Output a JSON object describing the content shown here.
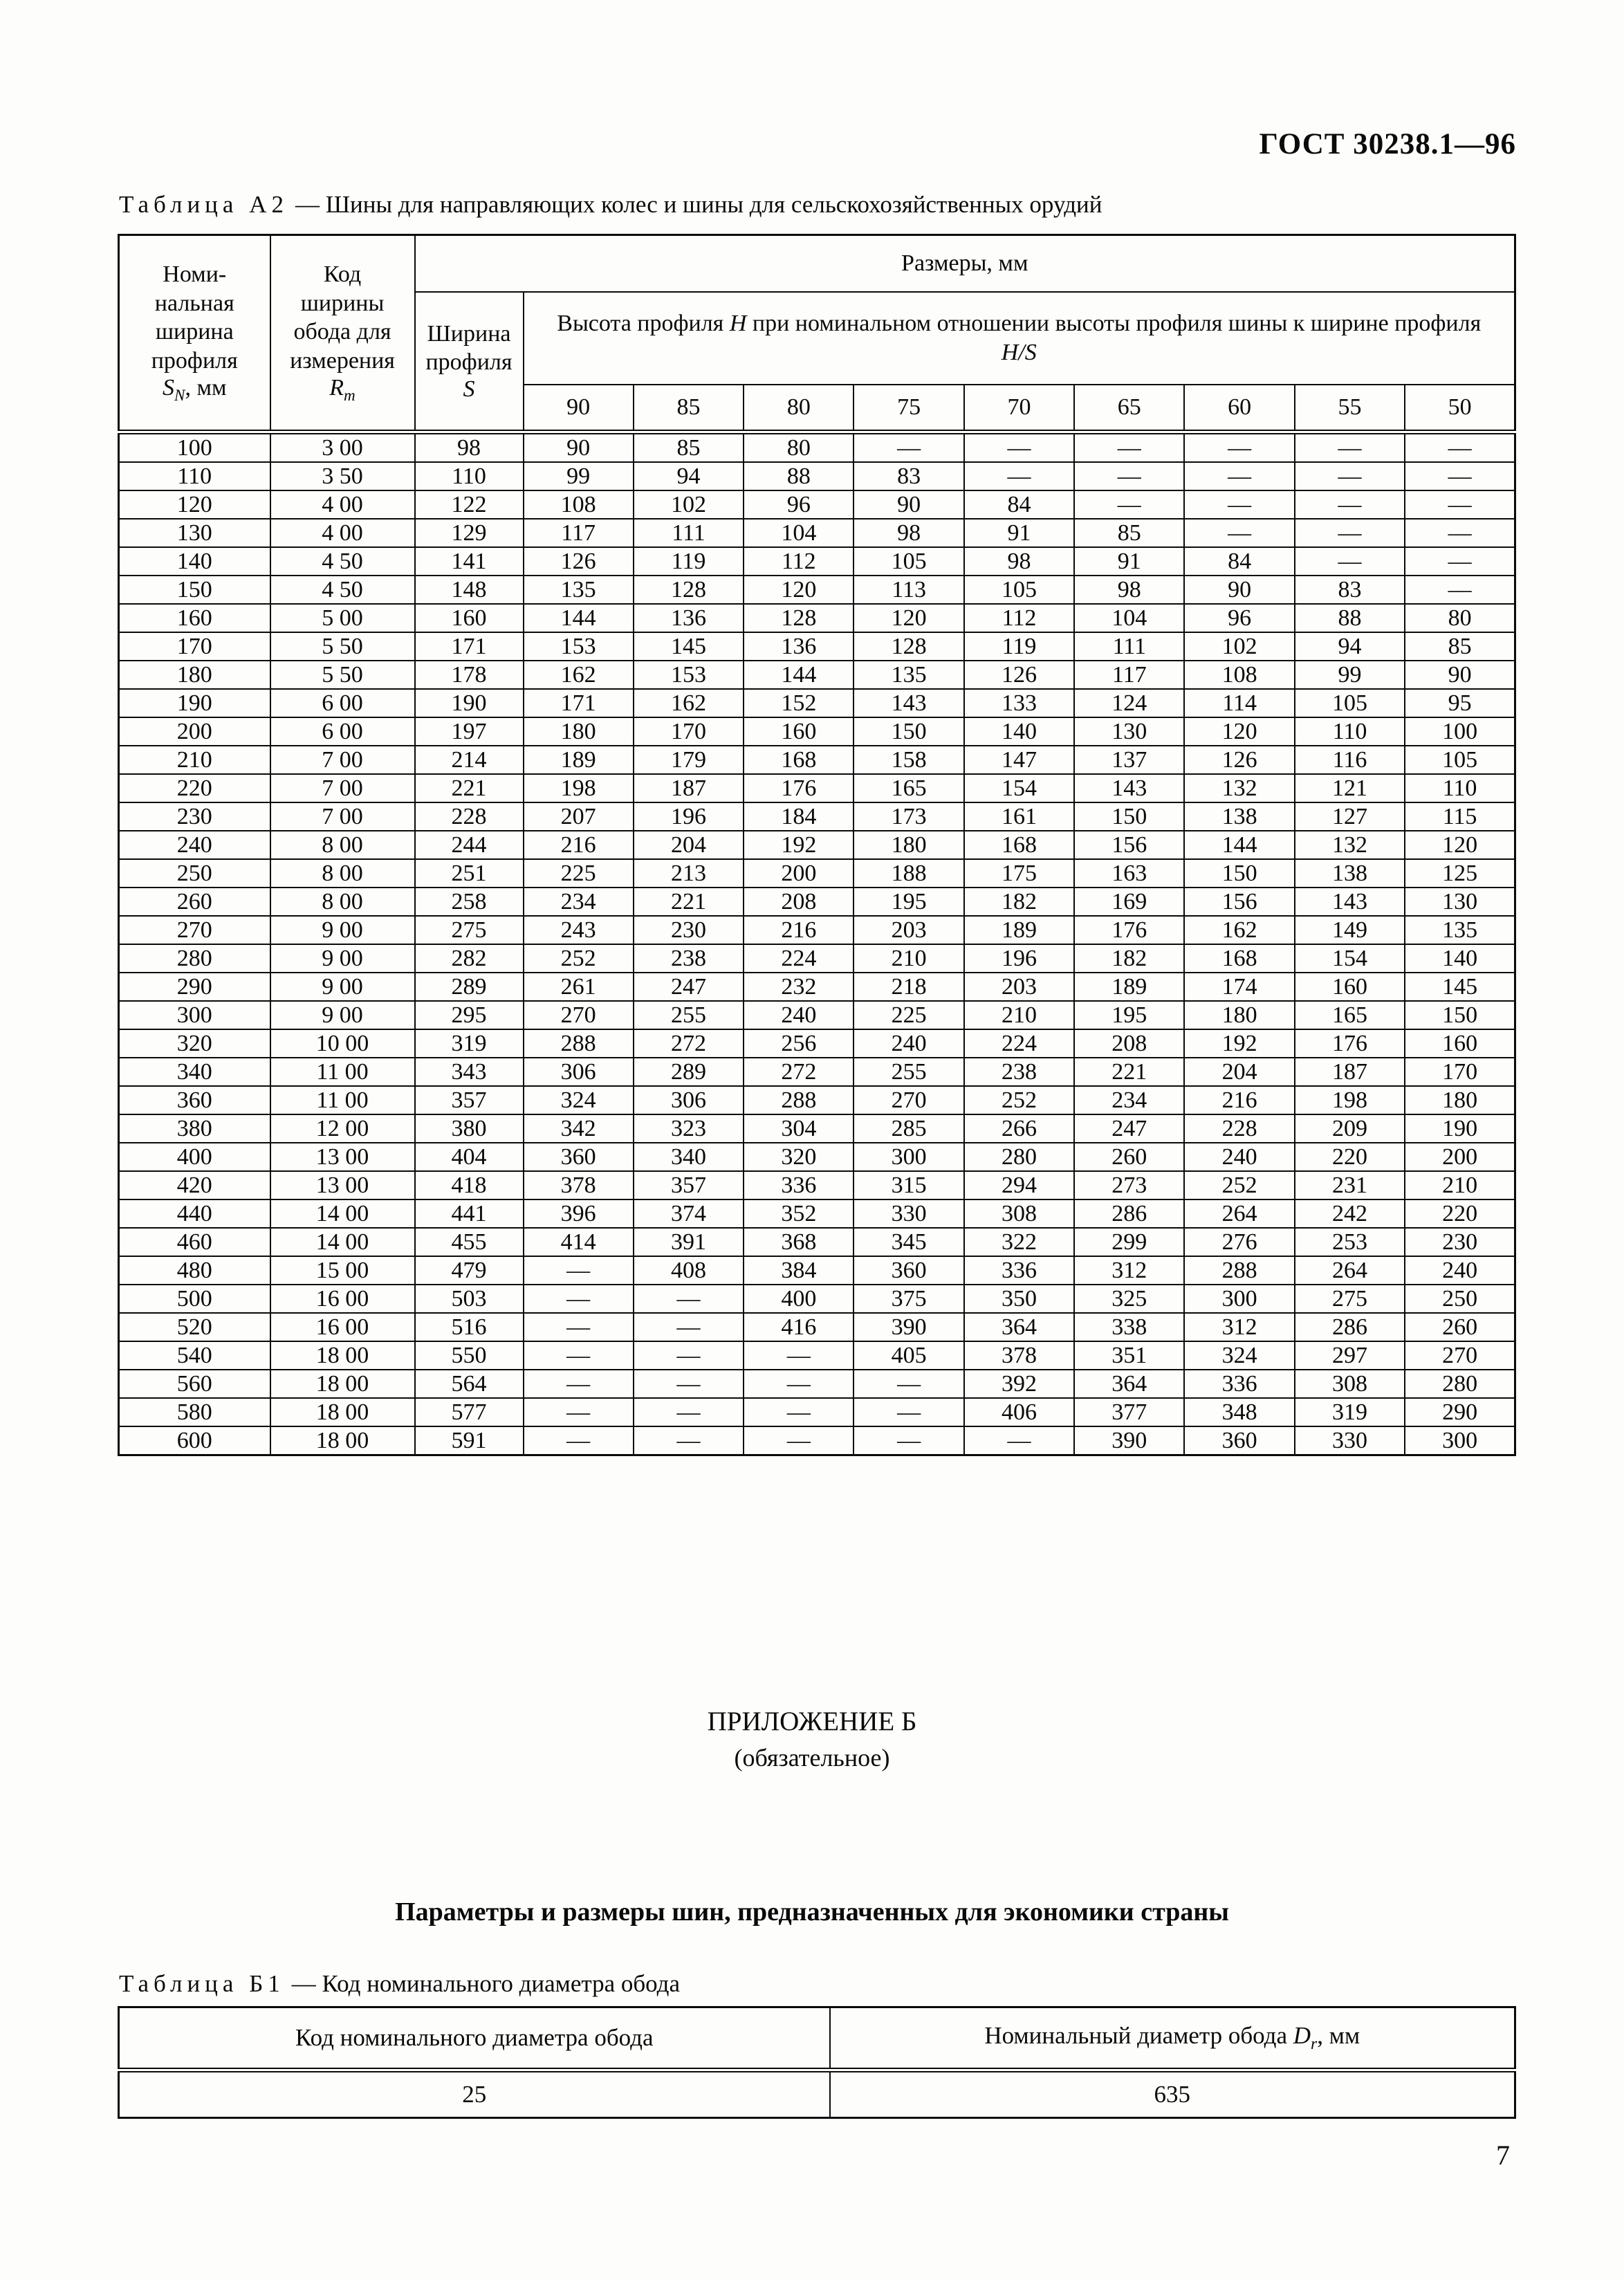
{
  "header": {
    "standard_number": "ГОСТ 30238.1—96",
    "page_number": "7"
  },
  "table_a2": {
    "caption_label": "Таблица А2",
    "caption_text": "— Шины для направляющих колес и шины для сельскохозяйственных орудий",
    "col_nominal_width_lines": "Номи-\nнальная\nширина\nпрофиля",
    "col_nominal_width_sym": "S",
    "col_nominal_width_sub": "N",
    "col_nominal_width_unit": ", мм",
    "col_rim_code_lines": "Код\nширины\nобода для\nизмерения",
    "col_rim_code_sym": "R",
    "col_rim_code_sub": "m",
    "sizes_header": "Размеры, мм",
    "col_section_width_lines": "Ширина\nпрофиля",
    "col_section_width_sym": "S",
    "height_header_t1": "Высота профиля ",
    "height_header_sym1": "H",
    "height_header_t2": " при номинальном отношении высоты профиля шины к ширине профиля ",
    "height_header_sym2": "H/S",
    "ratios": [
      "90",
      "85",
      "80",
      "75",
      "70",
      "65",
      "60",
      "55",
      "50"
    ],
    "rows": [
      [
        "100",
        "3 00",
        "98",
        "90",
        "85",
        "80",
        "—",
        "—",
        "—",
        "—",
        "—",
        "—"
      ],
      [
        "110",
        "3 50",
        "110",
        "99",
        "94",
        "88",
        "83",
        "—",
        "—",
        "—",
        "—",
        "—"
      ],
      [
        "120",
        "4 00",
        "122",
        "108",
        "102",
        "96",
        "90",
        "84",
        "—",
        "—",
        "—",
        "—"
      ],
      [
        "130",
        "4 00",
        "129",
        "117",
        "111",
        "104",
        "98",
        "91",
        "85",
        "—",
        "—",
        "—"
      ],
      [
        "140",
        "4 50",
        "141",
        "126",
        "119",
        "112",
        "105",
        "98",
        "91",
        "84",
        "—",
        "—"
      ],
      [
        "150",
        "4 50",
        "148",
        "135",
        "128",
        "120",
        "113",
        "105",
        "98",
        "90",
        "83",
        "—"
      ],
      [
        "160",
        "5 00",
        "160",
        "144",
        "136",
        "128",
        "120",
        "112",
        "104",
        "96",
        "88",
        "80"
      ],
      [
        "170",
        "5 50",
        "171",
        "153",
        "145",
        "136",
        "128",
        "119",
        "111",
        "102",
        "94",
        "85"
      ],
      [
        "180",
        "5 50",
        "178",
        "162",
        "153",
        "144",
        "135",
        "126",
        "117",
        "108",
        "99",
        "90"
      ],
      [
        "190",
        "6 00",
        "190",
        "171",
        "162",
        "152",
        "143",
        "133",
        "124",
        "114",
        "105",
        "95"
      ],
      [
        "200",
        "6 00",
        "197",
        "180",
        "170",
        "160",
        "150",
        "140",
        "130",
        "120",
        "110",
        "100"
      ],
      [
        "210",
        "7 00",
        "214",
        "189",
        "179",
        "168",
        "158",
        "147",
        "137",
        "126",
        "116",
        "105"
      ],
      [
        "220",
        "7 00",
        "221",
        "198",
        "187",
        "176",
        "165",
        "154",
        "143",
        "132",
        "121",
        "110"
      ],
      [
        "230",
        "7 00",
        "228",
        "207",
        "196",
        "184",
        "173",
        "161",
        "150",
        "138",
        "127",
        "115"
      ],
      [
        "240",
        "8 00",
        "244",
        "216",
        "204",
        "192",
        "180",
        "168",
        "156",
        "144",
        "132",
        "120"
      ],
      [
        "250",
        "8 00",
        "251",
        "225",
        "213",
        "200",
        "188",
        "175",
        "163",
        "150",
        "138",
        "125"
      ],
      [
        "260",
        "8 00",
        "258",
        "234",
        "221",
        "208",
        "195",
        "182",
        "169",
        "156",
        "143",
        "130"
      ],
      [
        "270",
        "9 00",
        "275",
        "243",
        "230",
        "216",
        "203",
        "189",
        "176",
        "162",
        "149",
        "135"
      ],
      [
        "280",
        "9 00",
        "282",
        "252",
        "238",
        "224",
        "210",
        "196",
        "182",
        "168",
        "154",
        "140"
      ],
      [
        "290",
        "9 00",
        "289",
        "261",
        "247",
        "232",
        "218",
        "203",
        "189",
        "174",
        "160",
        "145"
      ],
      [
        "300",
        "9 00",
        "295",
        "270",
        "255",
        "240",
        "225",
        "210",
        "195",
        "180",
        "165",
        "150"
      ],
      [
        "320",
        "10 00",
        "319",
        "288",
        "272",
        "256",
        "240",
        "224",
        "208",
        "192",
        "176",
        "160"
      ],
      [
        "340",
        "11 00",
        "343",
        "306",
        "289",
        "272",
        "255",
        "238",
        "221",
        "204",
        "187",
        "170"
      ],
      [
        "360",
        "11 00",
        "357",
        "324",
        "306",
        "288",
        "270",
        "252",
        "234",
        "216",
        "198",
        "180"
      ],
      [
        "380",
        "12 00",
        "380",
        "342",
        "323",
        "304",
        "285",
        "266",
        "247",
        "228",
        "209",
        "190"
      ],
      [
        "400",
        "13 00",
        "404",
        "360",
        "340",
        "320",
        "300",
        "280",
        "260",
        "240",
        "220",
        "200"
      ],
      [
        "420",
        "13 00",
        "418",
        "378",
        "357",
        "336",
        "315",
        "294",
        "273",
        "252",
        "231",
        "210"
      ],
      [
        "440",
        "14 00",
        "441",
        "396",
        "374",
        "352",
        "330",
        "308",
        "286",
        "264",
        "242",
        "220"
      ],
      [
        "460",
        "14 00",
        "455",
        "414",
        "391",
        "368",
        "345",
        "322",
        "299",
        "276",
        "253",
        "230"
      ],
      [
        "480",
        "15 00",
        "479",
        "—",
        "408",
        "384",
        "360",
        "336",
        "312",
        "288",
        "264",
        "240"
      ],
      [
        "500",
        "16 00",
        "503",
        "—",
        "—",
        "400",
        "375",
        "350",
        "325",
        "300",
        "275",
        "250"
      ],
      [
        "520",
        "16 00",
        "516",
        "—",
        "—",
        "416",
        "390",
        "364",
        "338",
        "312",
        "286",
        "260"
      ],
      [
        "540",
        "18 00",
        "550",
        "—",
        "—",
        "—",
        "405",
        "378",
        "351",
        "324",
        "297",
        "270"
      ],
      [
        "560",
        "18 00",
        "564",
        "—",
        "—",
        "—",
        "—",
        "392",
        "364",
        "336",
        "308",
        "280"
      ],
      [
        "580",
        "18 00",
        "577",
        "—",
        "—",
        "—",
        "—",
        "406",
        "377",
        "348",
        "319",
        "290"
      ],
      [
        "600",
        "18 00",
        "591",
        "—",
        "—",
        "—",
        "—",
        "—",
        "390",
        "360",
        "330",
        "300"
      ]
    ]
  },
  "appendix": {
    "title": "ПРИЛОЖЕНИЕ Б",
    "subtitle": "(обязательное)",
    "section_heading": "Параметры и размеры шин, предназначенных для экономики страны"
  },
  "table_b1": {
    "caption_label": "Таблица Б1",
    "caption_text": "— Код номинального диаметра обода",
    "col_code_header": "Код номинального диаметра обода",
    "col_diameter_prefix": "Номинальный диаметр обода ",
    "col_diameter_sym": "D",
    "col_diameter_sub": "r",
    "col_diameter_unit": ", мм",
    "rows": [
      [
        "25",
        "635"
      ]
    ]
  }
}
